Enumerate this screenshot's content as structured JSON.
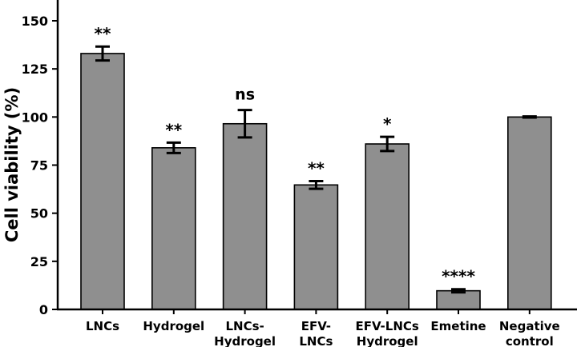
{
  "chart_data": {
    "type": "bar",
    "title": "",
    "xlabel": "",
    "ylabel": "Cell viability (%)",
    "ylim": [
      0,
      160
    ],
    "yticks": [
      0,
      25,
      50,
      75,
      100,
      125,
      150
    ],
    "grid": false,
    "bar_color": "#8f8f8f",
    "categories": [
      [
        "LNCs"
      ],
      [
        "Hydrogel"
      ],
      [
        "LNCs-",
        "Hydrogel"
      ],
      [
        "EFV-",
        "LNCs"
      ],
      [
        "EFV-LNCs",
        "Hydrogel"
      ],
      [
        "Emetine"
      ],
      [
        "Negative",
        "control"
      ]
    ],
    "values": [
      133,
      84,
      96.5,
      64.7,
      86,
      9.7,
      100
    ],
    "errors": [
      3.6,
      2.7,
      7.1,
      2,
      3.7,
      0.8,
      0.3
    ],
    "annotations": [
      "**",
      "**",
      "ns",
      "**",
      "*",
      "****",
      ""
    ]
  }
}
